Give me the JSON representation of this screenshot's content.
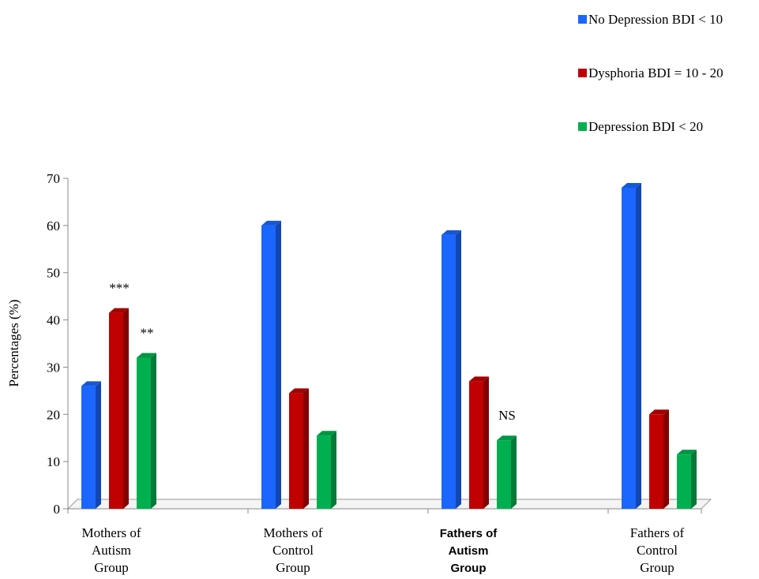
{
  "chart_data": {
    "type": "bar",
    "ylabel": "Percentages (%)",
    "ylim": [
      0,
      70
    ],
    "yticks": [
      0,
      10,
      20,
      30,
      40,
      50,
      60,
      70
    ],
    "grid": false,
    "legend_position": "top-right",
    "categories": [
      [
        "Mothers of",
        "Autism",
        "Group"
      ],
      [
        "Mothers of",
        "Control",
        "Group"
      ],
      [
        "Fathers of",
        "Autism",
        "Group"
      ],
      [
        "Fathers of",
        "Control",
        "Group"
      ]
    ],
    "series": [
      {
        "name": "No Depression BDI < 10",
        "color": "#1a66ff",
        "values": [
          26,
          60,
          58,
          68
        ]
      },
      {
        "name": "Dysphoria BDI = 10 - 20",
        "color": "#c00000",
        "values": [
          41.5,
          24.5,
          27,
          20
        ]
      },
      {
        "name": "Depression BDI < 20",
        "color": "#00b050",
        "values": [
          32,
          15.5,
          14.5,
          11.5
        ]
      }
    ],
    "annotations": [
      {
        "category": 0,
        "series": 1,
        "text": "***"
      },
      {
        "category": 0,
        "series": 2,
        "text": "**"
      },
      {
        "category": 2,
        "series": 2,
        "text": "NS"
      }
    ]
  }
}
